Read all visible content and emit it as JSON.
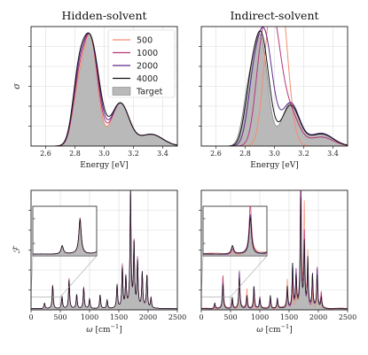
{
  "chart_data": [
    {
      "type": "line",
      "title": "Hidden-solvent",
      "xlabel": "Energy [eV]",
      "ylabel": "σ",
      "xlim": [
        2.5,
        3.5
      ],
      "xticks": [
        "2.6",
        "2.8",
        "3.0",
        "3.2",
        "3.4"
      ],
      "grid": true,
      "legend_position": "top-right",
      "target_name": "Target",
      "series": [
        {
          "name": "500",
          "color": "#f48c6f"
        },
        {
          "name": "1000",
          "color": "#b83479"
        },
        {
          "name": "2000",
          "color": "#5c2a8c"
        },
        {
          "name": "4000",
          "color": "#111111"
        }
      ]
    },
    {
      "type": "line",
      "title": "Indirect-solvent",
      "xlabel": "Energy [eV]",
      "xlim": [
        2.5,
        3.5
      ],
      "xticks": [
        "2.6",
        "2.8",
        "3.0",
        "3.2",
        "3.4"
      ],
      "grid": true,
      "peak_energy": {
        "500": 3.03,
        "1000": 2.98,
        "2000": 2.93,
        "4000": 2.91
      }
    },
    {
      "type": "line",
      "xlabel": "ω [cm⁻¹]",
      "ylabel": "ℱ",
      "xlim": [
        0,
        2500
      ],
      "xticks": [
        "0",
        "500",
        "1000",
        "1500",
        "2000",
        "2500"
      ],
      "grid": true,
      "inset_xrange": [
        0,
        500
      ]
    },
    {
      "type": "line",
      "xlabel": "ω [cm⁻¹]",
      "xlim": [
        0,
        2500
      ],
      "xticks": [
        "0",
        "500",
        "1000",
        "1500",
        "2000",
        "2500"
      ],
      "grid": true,
      "inset_xrange": [
        0,
        500
      ]
    }
  ]
}
